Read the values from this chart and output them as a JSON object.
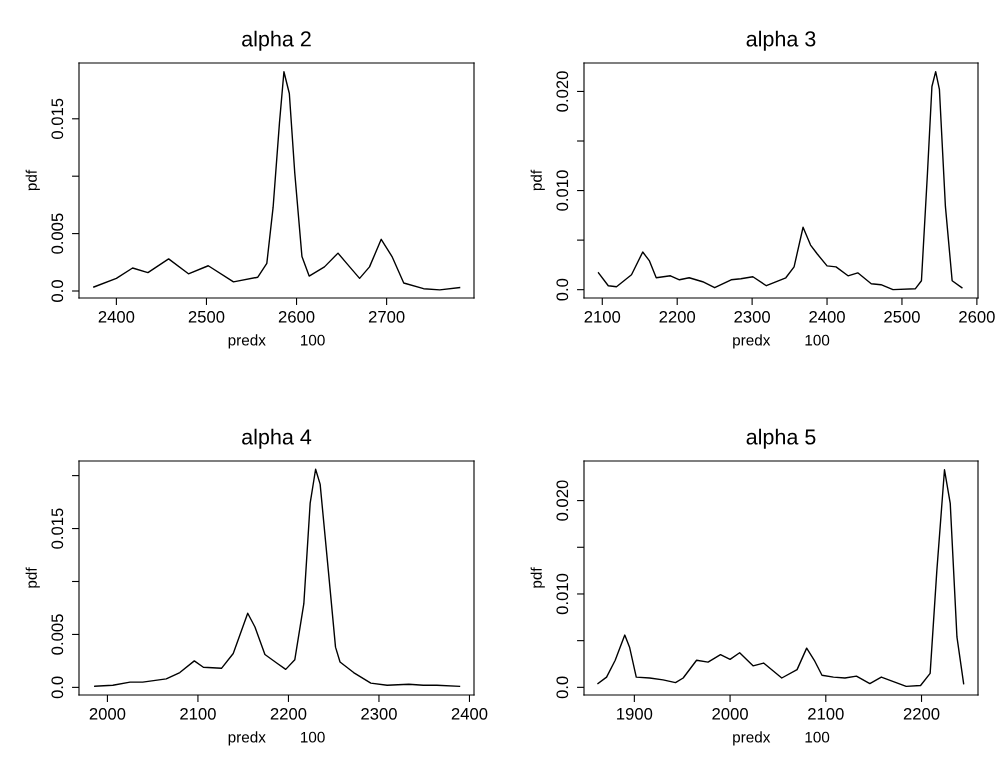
{
  "chart_data": [
    {
      "type": "line",
      "title": "alpha 2",
      "xlabel": "predx        100",
      "ylabel": "pdf",
      "xlim": [
        2358.5,
        2797
      ],
      "ylim": [
        -0.00061,
        0.01986
      ],
      "xticks": [
        2400,
        2500,
        2600,
        2700
      ],
      "yticks": [
        {
          "value": 0,
          "label": "0.0"
        },
        {
          "value": 0.005,
          "label": "0.005"
        },
        {
          "value": 0.01,
          "label": null
        },
        {
          "value": 0.015,
          "label": "0.015"
        }
      ],
      "series": [
        {
          "color": "#000000",
          "x": [
            2375,
            2400,
            2418,
            2435,
            2458,
            2480,
            2502,
            2530,
            2557,
            2567,
            2574,
            2581,
            2586,
            2592,
            2598,
            2606,
            2614,
            2631,
            2646,
            2659,
            2670,
            2681,
            2694,
            2706,
            2719,
            2741,
            2759,
            2781
          ],
          "values": [
            0.00035,
            0.0011,
            0.002,
            0.0016,
            0.0028,
            0.0015,
            0.0022,
            0.0008,
            0.0012,
            0.0024,
            0.0073,
            0.0146,
            0.0191,
            0.0172,
            0.0103,
            0.003,
            0.0013,
            0.0021,
            0.0033,
            0.0021,
            0.0011,
            0.0021,
            0.0045,
            0.003,
            0.0007,
            0.0002,
            0.0001,
            0.0003
          ]
        }
      ]
    },
    {
      "type": "line",
      "title": "alpha 3",
      "xlabel": "predx        100",
      "ylabel": "pdf",
      "xlim": [
        2075.6,
        2601.5
      ],
      "ylim": [
        -0.00084,
        0.02287
      ],
      "xticks": [
        2100,
        2200,
        2300,
        2400,
        2500,
        2600
      ],
      "yticks": [
        {
          "value": 0,
          "label": "0.0"
        },
        {
          "value": 0.005,
          "label": null
        },
        {
          "value": 0.01,
          "label": "0.010"
        },
        {
          "value": 0.015,
          "label": null
        },
        {
          "value": 0.02,
          "label": "0.020"
        }
      ],
      "series": [
        {
          "color": "#000000",
          "x": [
            2095,
            2108,
            2119,
            2139,
            2154,
            2163,
            2172,
            2191,
            2203,
            2216,
            2234,
            2250,
            2272,
            2285,
            2301,
            2319,
            2345,
            2356,
            2368,
            2378,
            2387,
            2400,
            2412,
            2428,
            2441,
            2459,
            2472,
            2488,
            2518,
            2526,
            2534,
            2540,
            2545,
            2550,
            2558,
            2567,
            2580
          ],
          "values": [
            0.0017,
            0.0004,
            0.0003,
            0.0015,
            0.0038,
            0.0029,
            0.0012,
            0.0014,
            0.001,
            0.0012,
            0.0008,
            0.0002,
            0.001,
            0.0011,
            0.0013,
            0.0004,
            0.0012,
            0.0023,
            0.0063,
            0.0045,
            0.0036,
            0.0024,
            0.0023,
            0.0014,
            0.0017,
            0.0006,
            0.0005,
            0.0,
            0.0001,
            0.0009,
            0.0117,
            0.0205,
            0.022,
            0.0202,
            0.0084,
            0.0009,
            0.0002
          ]
        }
      ]
    },
    {
      "type": "line",
      "title": "alpha 4",
      "xlabel": "predx        100",
      "ylabel": "pdf",
      "xlim": [
        1968.6,
        2405
      ],
      "ylim": [
        -0.00072,
        0.02138
      ],
      "xticks": [
        2000,
        2100,
        2200,
        2300,
        2400
      ],
      "yticks": [
        {
          "value": 0,
          "label": "0.0"
        },
        {
          "value": 0.005,
          "label": "0.005"
        },
        {
          "value": 0.01,
          "label": null
        },
        {
          "value": 0.015,
          "label": "0.015"
        },
        {
          "value": 0.02,
          "label": null
        }
      ],
      "series": [
        {
          "color": "#000000",
          "x": [
            1986,
            2006,
            2025,
            2039,
            2065,
            2080,
            2096,
            2106,
            2126,
            2139,
            2155,
            2163,
            2174,
            2187,
            2197,
            2207,
            2217,
            2224,
            2230,
            2235,
            2244,
            2252,
            2257,
            2272,
            2291,
            2309,
            2333,
            2349,
            2364,
            2389
          ],
          "values": [
            0.0001,
            0.0002,
            0.0005,
            0.0005,
            0.0008,
            0.0014,
            0.0025,
            0.0019,
            0.0018,
            0.0032,
            0.007,
            0.0057,
            0.0031,
            0.0023,
            0.0017,
            0.0026,
            0.0079,
            0.0174,
            0.0206,
            0.0192,
            0.0111,
            0.0038,
            0.0024,
            0.0014,
            0.0004,
            0.0002,
            0.0003,
            0.0002,
            0.0002,
            0.0001
          ]
        }
      ]
    },
    {
      "type": "line",
      "title": "alpha 5",
      "xlabel": "predx        100",
      "ylabel": "pdf",
      "xlim": [
        1847.4,
        2259
      ],
      "ylim": [
        -0.00082,
        0.02424
      ],
      "xticks": [
        1900,
        2000,
        2100,
        2200
      ],
      "yticks": [
        {
          "value": 0,
          "label": "0.0"
        },
        {
          "value": 0.005,
          "label": null
        },
        {
          "value": 0.01,
          "label": "0.010"
        },
        {
          "value": 0.015,
          "label": null
        },
        {
          "value": 0.02,
          "label": "0.020"
        }
      ],
      "series": [
        {
          "color": "#000000",
          "x": [
            1862,
            1871,
            1880,
            1890,
            1895,
            1902,
            1916,
            1930,
            1943,
            1951,
            1965,
            1977,
            1990,
            2000,
            2010,
            2024,
            2035,
            2054,
            2070,
            2080,
            2088,
            2096,
            2108,
            2120,
            2132,
            2146,
            2158,
            2184,
            2199,
            2209,
            2216,
            2224,
            2230,
            2237,
            2244
          ],
          "values": [
            0.0004,
            0.0011,
            0.0029,
            0.0056,
            0.0043,
            0.0011,
            0.001,
            0.0008,
            0.0005,
            0.001,
            0.0029,
            0.0027,
            0.0035,
            0.003,
            0.0037,
            0.0023,
            0.0026,
            0.001,
            0.0019,
            0.0042,
            0.0029,
            0.0013,
            0.0011,
            0.001,
            0.0012,
            0.0004,
            0.0011,
            0.0001,
            0.0002,
            0.0015,
            0.0125,
            0.0233,
            0.0197,
            0.0054,
            0.0004
          ]
        }
      ]
    }
  ]
}
